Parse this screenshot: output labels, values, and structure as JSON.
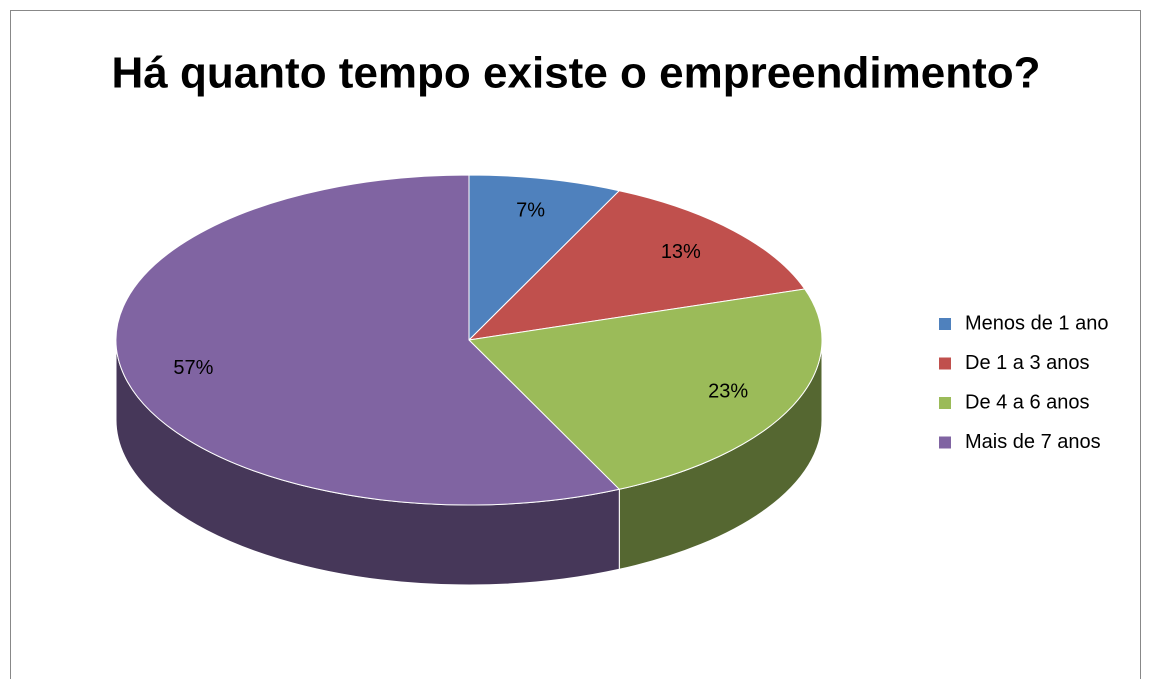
{
  "chart_data": {
    "type": "pie",
    "title": "Há quanto tempo existe o empreendimento?",
    "categories": [
      "Menos de 1 ano",
      "De 1 a 3 anos",
      "De 4 a 6 anos",
      "Mais de 7 anos"
    ],
    "values": [
      7,
      13,
      23,
      57
    ],
    "value_labels": [
      "7%",
      "13%",
      "23%",
      "57%"
    ],
    "colors": [
      "#4f81bd",
      "#c0504d",
      "#9bbb59",
      "#8064a2"
    ],
    "legend": "right"
  }
}
